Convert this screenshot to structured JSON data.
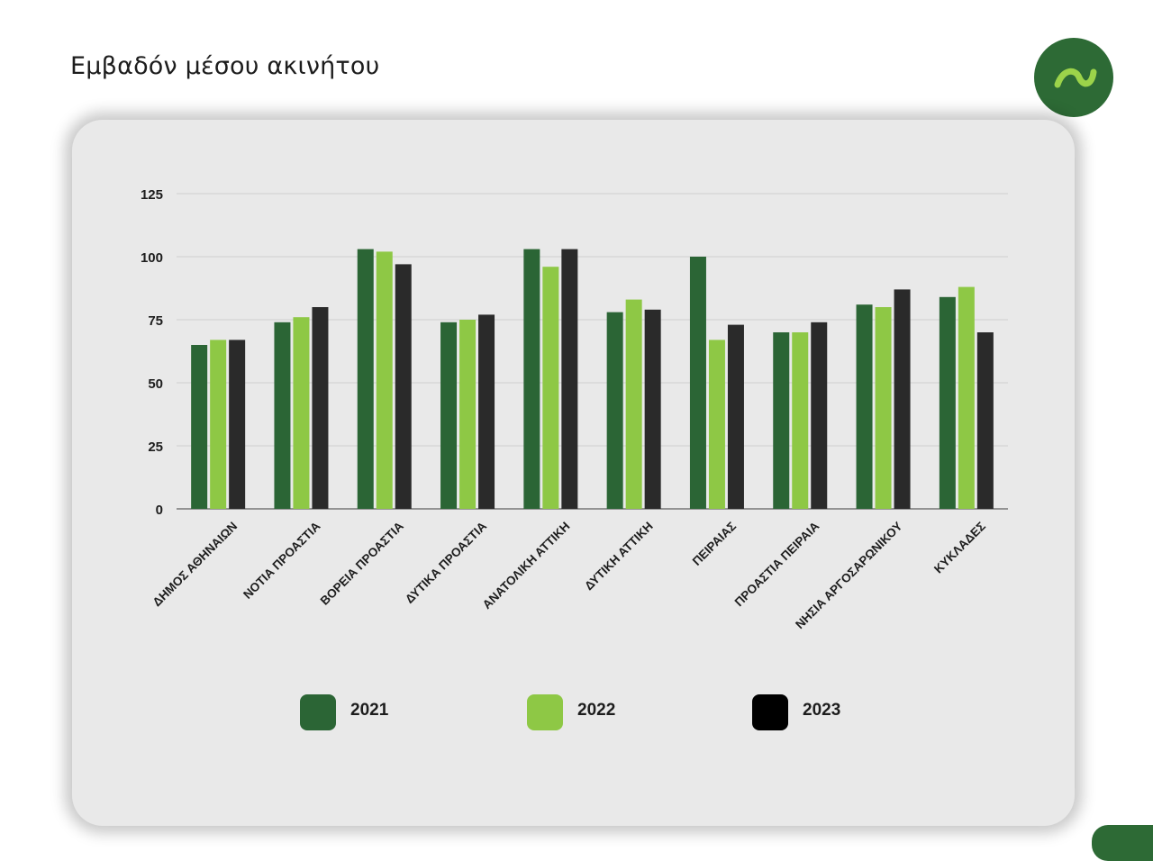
{
  "page": {
    "title": "Εμβαδόν μέσου ακινήτου"
  },
  "logo": {
    "icon": "tilde-wave-icon",
    "color": "#2d6a35",
    "glyph_color": "#9cd34a"
  },
  "chart_data": {
    "type": "bar",
    "title": "",
    "xlabel": "",
    "ylabel": "",
    "ylim": [
      0,
      125
    ],
    "yticks": [
      0,
      25,
      50,
      75,
      100,
      125
    ],
    "grid": true,
    "legend_position": "bottom",
    "categories": [
      "ΔΗΜΟΣ ΑΘΗΝΑΙΩΝ",
      "ΝΟΤΙΑ ΠΡΟΑΣΤΙΑ",
      "ΒΟΡΕΙΑ ΠΡΟΑΣΤΙΑ",
      "ΔΥΤΙΚΑ ΠΡΟΑΣΤΙΑ",
      "ΑΝΑΤΟΛΙΚΗ ΑΤΤΙΚΗ",
      "ΔΥΤΙΚΗ ΑΤΤΙΚΗ",
      "ΠΕΙΡΑΙΑΣ",
      "ΠΡΟΑΣΤΙΑ ΠΕΙΡΑΙΑ",
      "ΝΗΣΙΑ ΑΡΓΟΣΑΡΩΝΙΚΟΥ",
      "ΚΥΚΛΑΔΕΣ"
    ],
    "series": [
      {
        "name": "2021",
        "color": "#2b6535",
        "legend_color": "#2b6535",
        "values": [
          65,
          74,
          103,
          74,
          103,
          78,
          100,
          70,
          81,
          84
        ]
      },
      {
        "name": "2022",
        "color": "#8ec845",
        "legend_color": "#8ec845",
        "values": [
          67,
          76,
          102,
          75,
          96,
          83,
          67,
          70,
          80,
          88
        ]
      },
      {
        "name": "2023",
        "color": "#2a2a2a",
        "legend_color": "#000000",
        "values": [
          67,
          80,
          97,
          77,
          103,
          79,
          73,
          74,
          87,
          70
        ]
      }
    ]
  }
}
